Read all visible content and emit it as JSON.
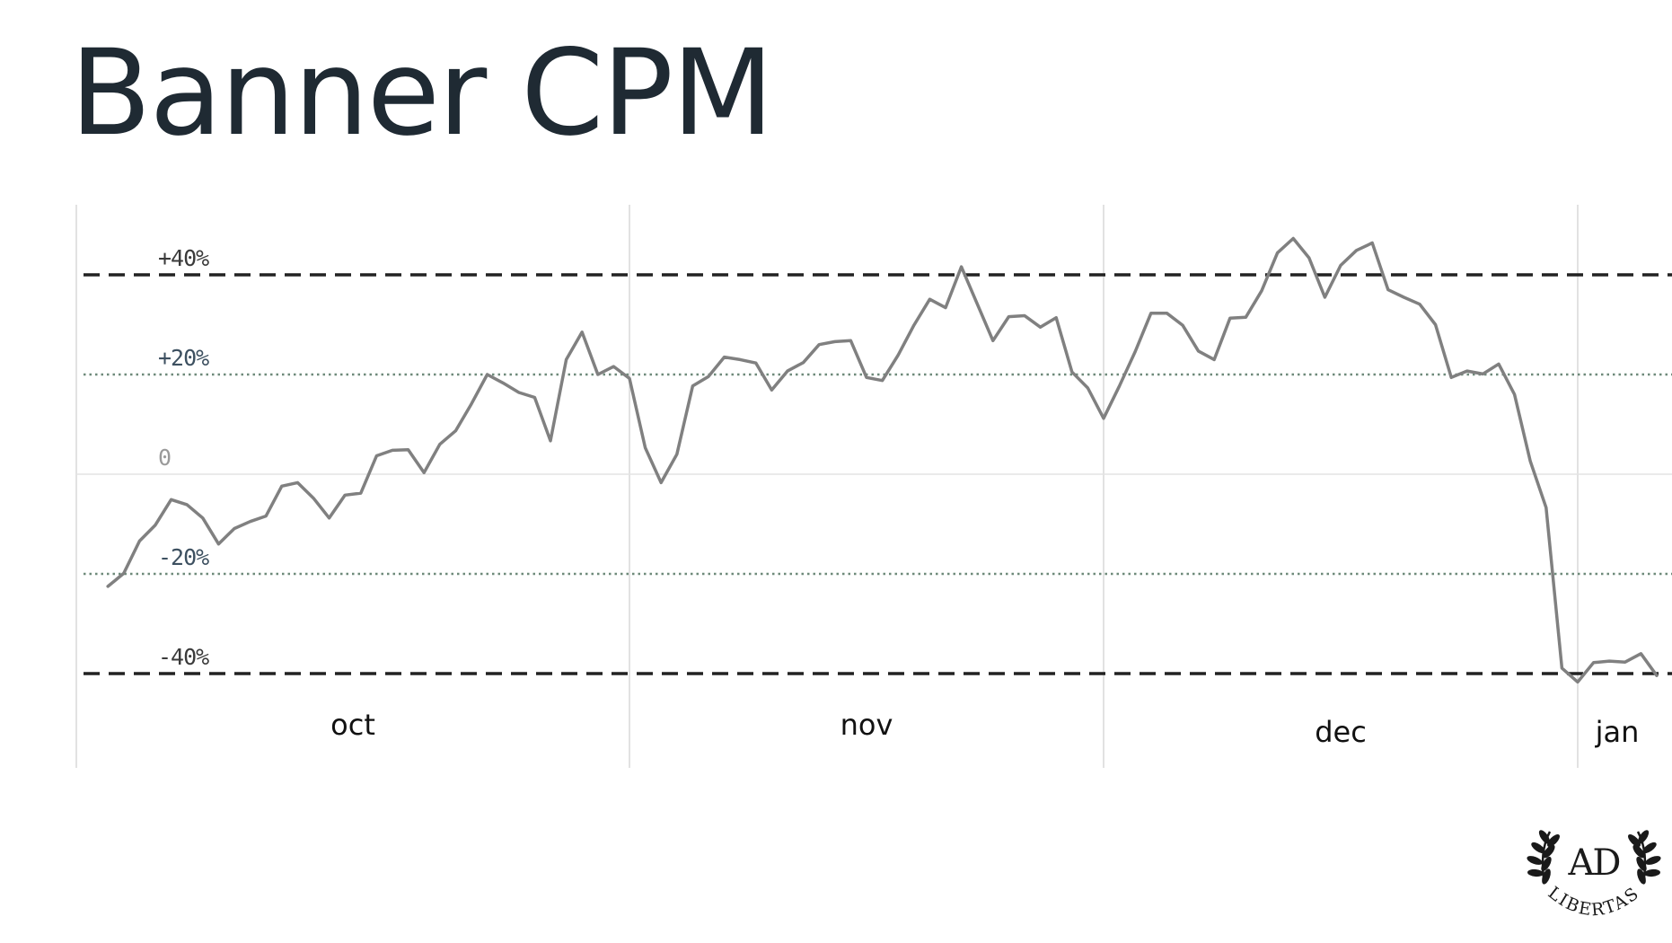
{
  "title": "Banner CPM",
  "chart_data": {
    "type": "line",
    "title": "Banner CPM",
    "xlabel": "",
    "ylabel": "",
    "ylim": [
      -48,
      50
    ],
    "y_ticks": [
      {
        "value": 40,
        "label": "+40%",
        "style": "dashed",
        "color": "#222222"
      },
      {
        "value": 20,
        "label": "+20%",
        "style": "dotted",
        "color": "#6e8a7a"
      },
      {
        "value": 0,
        "label": "0",
        "style": "solid",
        "color": "#e3e3e3"
      },
      {
        "value": -20,
        "label": "-20%",
        "style": "dotted",
        "color": "#6e8a7a"
      },
      {
        "value": -40,
        "label": "-40%",
        "style": "dashed",
        "color": "#222222"
      }
    ],
    "x_months": [
      "oct",
      "nov",
      "dec",
      "jan"
    ],
    "x_boundaries": [
      0,
      35,
      65,
      95,
      101
    ],
    "grid": true,
    "line_color": "#808080",
    "series": [
      {
        "name": "",
        "x": [
          2,
          3,
          4,
          5,
          6,
          7,
          8,
          9,
          10,
          11,
          12,
          13,
          14,
          15,
          16,
          17,
          18,
          19,
          20,
          21,
          22,
          23,
          24,
          25,
          26,
          27,
          28,
          29,
          30,
          31,
          32,
          33,
          34,
          35,
          36,
          37,
          38,
          39,
          40,
          41,
          42,
          43,
          44,
          45,
          46,
          47,
          48,
          49,
          50,
          51,
          52,
          53,
          54,
          55,
          56,
          57,
          58,
          59,
          60,
          61,
          62,
          63,
          64,
          65,
          66,
          67,
          68,
          69,
          70,
          71,
          72,
          73,
          74,
          75,
          76,
          77,
          78,
          79,
          80,
          81,
          82,
          83,
          84,
          85,
          86,
          87,
          88,
          89,
          90,
          91,
          92,
          93,
          94,
          95,
          96,
          97,
          98,
          99,
          100
        ],
        "values": [
          -22.5,
          -19.9,
          -13.4,
          -10.2,
          -5.1,
          -6.1,
          -8.8,
          -14.0,
          -10.9,
          -9.5,
          -8.4,
          -2.4,
          -1.7,
          -4.8,
          -8.8,
          -4.2,
          -3.8,
          3.7,
          4.8,
          4.9,
          0.3,
          6.0,
          8.7,
          14.1,
          20.0,
          18.3,
          16.4,
          15.4,
          6.7,
          23.0,
          28.5,
          20.0,
          21.6,
          19.2,
          5.3,
          -1.7,
          4.0,
          17.7,
          19.6,
          23.5,
          23.0,
          22.3,
          16.9,
          20.7,
          22.4,
          26.0,
          26.6,
          26.8,
          19.4,
          18.8,
          23.9,
          29.9,
          35.1,
          33.4,
          41.6,
          34.2,
          26.8,
          31.6,
          31.8,
          29.5,
          31.4,
          20.5,
          17.3,
          11.2,
          17.7,
          24.6,
          32.3,
          32.3,
          29.9,
          24.7,
          23.0,
          31.3,
          31.5,
          36.8,
          44.4,
          47.3,
          43.4,
          35.5,
          41.9,
          44.9,
          46.4,
          37.0,
          35.5,
          34.1,
          30.0,
          19.4,
          20.7,
          20.1,
          22.1,
          16.0,
          2.6,
          -6.7,
          -38.9,
          -41.7,
          -37.8,
          -37.5,
          -37.7,
          -36.0,
          -40.4
        ]
      }
    ]
  },
  "logo": {
    "monogram": "AD",
    "text": "LIBERTAS",
    "color": "#1a1a1a"
  }
}
